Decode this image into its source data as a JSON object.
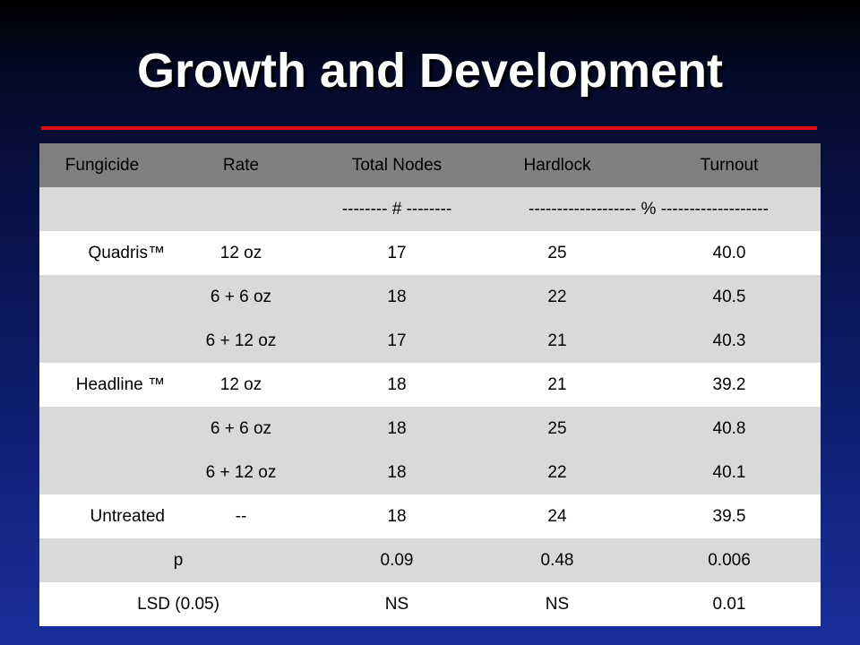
{
  "slide": {
    "title": "Growth and Development",
    "accent_color": "#e01010"
  },
  "table": {
    "headers": [
      "Fungicide",
      "Rate",
      "Total Nodes",
      "Hardlock",
      "Turnout"
    ],
    "units": {
      "count": "-------- # --------",
      "percent": "------------------- % -------------------"
    },
    "rows": [
      {
        "fungicide": "Quadris™",
        "rate": "12 oz",
        "nodes": "17",
        "hardlock": "25",
        "turnout": "40.0"
      },
      {
        "fungicide": "",
        "rate": "6 + 6 oz",
        "nodes": "18",
        "hardlock": "22",
        "turnout": "40.5"
      },
      {
        "fungicide": "",
        "rate": "6 + 12 oz",
        "nodes": "17",
        "hardlock": "21",
        "turnout": "40.3"
      },
      {
        "fungicide": "Headline  ™",
        "rate": "12 oz",
        "nodes": "18",
        "hardlock": "21",
        "turnout": "39.2"
      },
      {
        "fungicide": "",
        "rate": "6 + 6 oz",
        "nodes": "18",
        "hardlock": "25",
        "turnout": "40.8"
      },
      {
        "fungicide": "",
        "rate": "6 + 12 oz",
        "nodes": "18",
        "hardlock": "22",
        "turnout": "40.1"
      },
      {
        "fungicide": "Untreated",
        "rate": "--",
        "nodes": "18",
        "hardlock": "24",
        "turnout": "39.5"
      }
    ],
    "stats": [
      {
        "label": "p",
        "nodes": "0.09",
        "hardlock": "0.48",
        "turnout": "0.006"
      },
      {
        "label": "LSD (0.05)",
        "nodes": "NS",
        "hardlock": "NS",
        "turnout": "0.01"
      }
    ]
  }
}
